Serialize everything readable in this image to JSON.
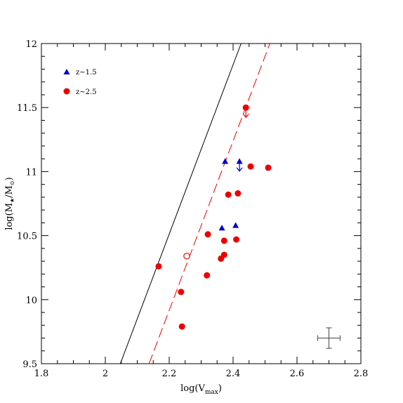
{
  "chart_data": {
    "type": "scatter",
    "xlabel": "log(V",
    "xlabel_sub": "max",
    "xlabel_end": ")",
    "ylabel": "log(M",
    "ylabel_sub1": "★",
    "ylabel_mid": "/M",
    "ylabel_sub2": "⊙",
    "ylabel_end": ")",
    "xlim": [
      1.8,
      2.8
    ],
    "ylim": [
      9.5,
      12.0
    ],
    "xticks": [
      1.8,
      2.0,
      2.2,
      2.4,
      2.6,
      2.8
    ],
    "xtick_labels": [
      "1.8",
      "2",
      "2.2",
      "2.4",
      "2.6",
      "2.8"
    ],
    "yticks": [
      9.5,
      10.0,
      10.5,
      11.0,
      11.5,
      12.0
    ],
    "ytick_labels": [
      "9.5",
      "10",
      "10.5",
      "11",
      "11.5",
      "12"
    ],
    "legend_position": "top-left",
    "series": [
      {
        "name": "z~1.5",
        "marker": "triangle",
        "color": "#0000cc",
        "points": [
          {
            "x": 2.375,
            "y": 11.08
          },
          {
            "x": 2.42,
            "y": 11.08
          },
          {
            "x": 2.365,
            "y": 10.56
          },
          {
            "x": 2.408,
            "y": 10.58
          }
        ]
      },
      {
        "name": "z~2.5",
        "marker": "circle",
        "color": "#ee0000",
        "points": [
          {
            "x": 2.167,
            "y": 10.26
          },
          {
            "x": 2.237,
            "y": 10.06
          },
          {
            "x": 2.24,
            "y": 9.79
          },
          {
            "x": 2.318,
            "y": 10.19
          },
          {
            "x": 2.321,
            "y": 10.51
          },
          {
            "x": 2.362,
            "y": 10.32
          },
          {
            "x": 2.372,
            "y": 10.35
          },
          {
            "x": 2.372,
            "y": 10.46
          },
          {
            "x": 2.385,
            "y": 10.82
          },
          {
            "x": 2.41,
            "y": 10.47
          },
          {
            "x": 2.415,
            "y": 10.83
          },
          {
            "x": 2.44,
            "y": 11.5
          },
          {
            "x": 2.455,
            "y": 11.04
          },
          {
            "x": 2.51,
            "y": 11.03
          }
        ]
      }
    ],
    "open_points": [
      {
        "x": 2.255,
        "y": 10.34,
        "color": "#ee0000"
      }
    ],
    "limit_arrows": [
      {
        "x": 2.42,
        "y": 11.08,
        "direction": "down",
        "color": "#0000cc"
      },
      {
        "x": 2.44,
        "y": 11.5,
        "direction": "down",
        "color": "#ee0000"
      }
    ],
    "lines": [
      {
        "style": "solid",
        "color": "#000000",
        "from": [
          2.047,
          9.5
        ],
        "to": [
          2.425,
          12.0
        ]
      },
      {
        "style": "dashed",
        "color": "#ee0000",
        "from": [
          2.137,
          9.5
        ],
        "to": [
          2.515,
          12.0
        ]
      }
    ],
    "error_bar": {
      "x": 2.7,
      "y": 9.7,
      "xerr": 0.035,
      "yerr": 0.08,
      "color": "#444444"
    }
  }
}
